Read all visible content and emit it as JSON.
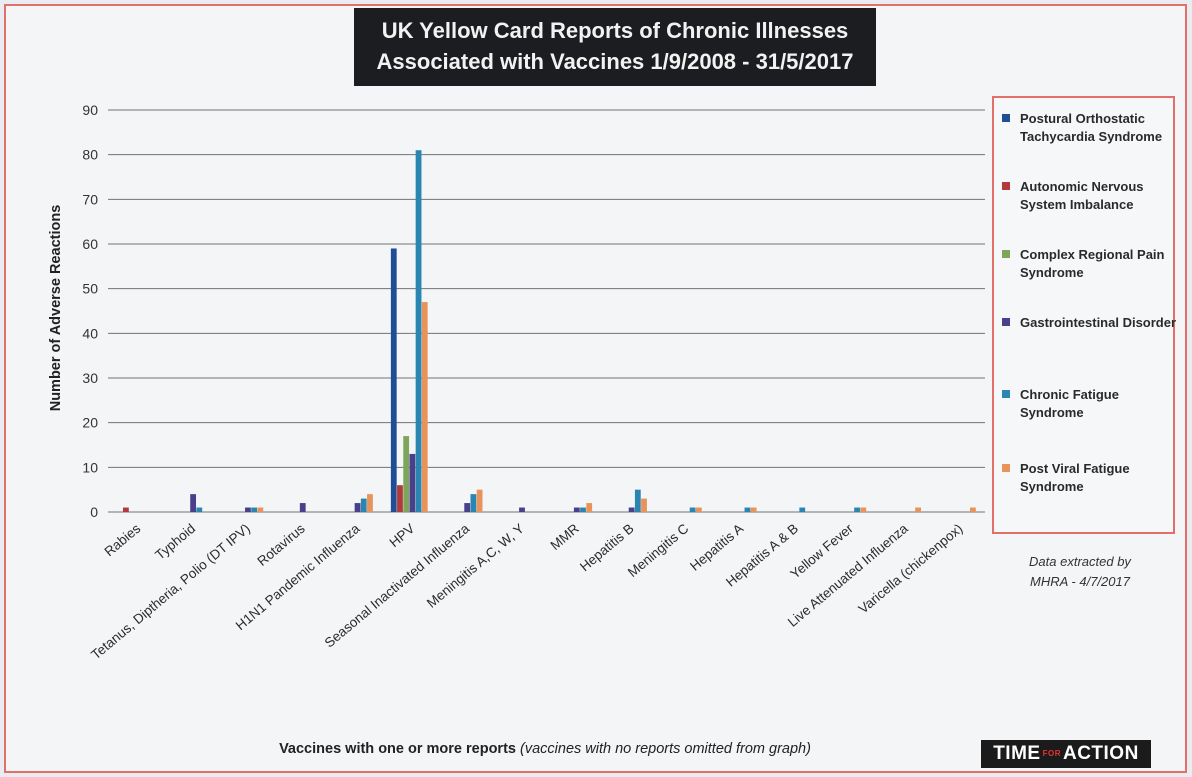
{
  "chart_data": {
    "type": "bar",
    "title": [
      "UK Yellow Card Reports of Chronic Illnesses",
      "Associated with Vaccines 1/9/2008 - 31/5/2017"
    ],
    "ylabel": "Number of Adverse Reactions",
    "xlabel": "Vaccines with one or more reports",
    "xlabel_note": "(vaccines with no reports omitted from graph)",
    "ylim": [
      0,
      90
    ],
    "yticks": [
      "0",
      "10",
      "20",
      "30",
      "40",
      "50",
      "60",
      "70",
      "80",
      "90"
    ],
    "grid": true,
    "legend_position": "right",
    "categories": [
      "Rabies",
      "Typhoid",
      "Tetanus, Diptheria, Polio (DT IPV)",
      "Rotavirus",
      "H1N1 Pandemic Influenza",
      "HPV",
      "Seasonal Inactivated Influenza",
      "Meningitis A,C, W, Y",
      "MMR",
      "Hepatitis B",
      "Meningitis C",
      "Hepatitis A",
      "Hepatitis A & B",
      "Yellow Fever",
      "Live Attenuated Influenza",
      "Varicella (chickenpox)"
    ],
    "series": [
      {
        "name": "Postural Orthostatic Tachycardia Syndrome",
        "color": "#1f4e96",
        "values": [
          0,
          0,
          0,
          0,
          0,
          59,
          0,
          0,
          0,
          0,
          0,
          0,
          0,
          0,
          0,
          0
        ]
      },
      {
        "name": "Autonomic Nervous System Imbalance",
        "color": "#b23a3d",
        "values": [
          1,
          0,
          0,
          0,
          0,
          6,
          0,
          0,
          0,
          0,
          0,
          0,
          0,
          0,
          0,
          0
        ]
      },
      {
        "name": "Complex Regional Pain Syndrome",
        "color": "#7ea65a",
        "values": [
          0,
          0,
          0,
          0,
          0,
          17,
          0,
          0,
          0,
          0,
          0,
          0,
          0,
          0,
          0,
          0
        ]
      },
      {
        "name": "Gastrointestinal Disorder",
        "color": "#4a3f8a",
        "values": [
          0,
          4,
          1,
          2,
          2,
          13,
          2,
          1,
          1,
          1,
          0,
          0,
          0,
          0,
          0,
          0
        ]
      },
      {
        "name": "Chronic Fatigue Syndrome",
        "color": "#2a86b0",
        "values": [
          0,
          1,
          1,
          0,
          3,
          81,
          4,
          0,
          1,
          5,
          1,
          1,
          1,
          1,
          0,
          0
        ]
      },
      {
        "name": "Post Viral Fatigue Syndrome",
        "color": "#e8935a",
        "values": [
          0,
          0,
          1,
          0,
          4,
          47,
          5,
          0,
          2,
          3,
          1,
          1,
          0,
          1,
          1,
          1
        ]
      }
    ],
    "annotation": [
      "Data extracted by",
      "MHRA - 4/7/2017"
    ]
  },
  "logo": {
    "left": "TIME",
    "small": "FOR",
    "right": "ACTION"
  }
}
